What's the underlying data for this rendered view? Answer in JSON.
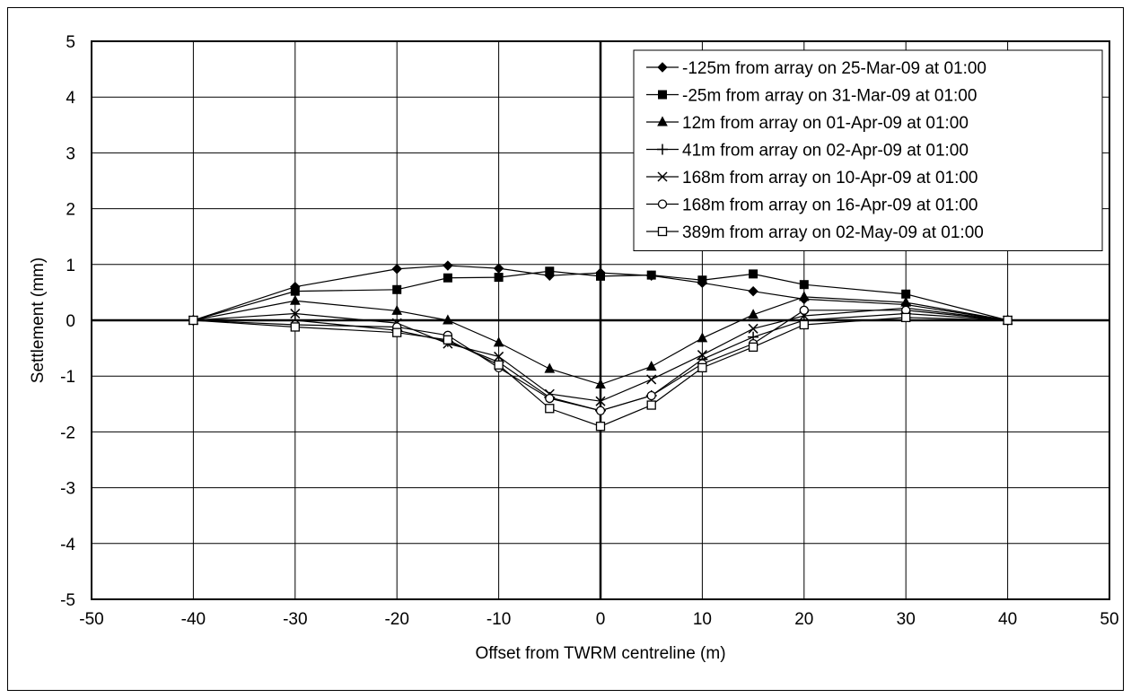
{
  "chart_data": {
    "type": "line",
    "title": "",
    "xlabel": "Offset from TWRM centreline (m)",
    "ylabel": "Settlement (mm)",
    "xlim": [
      -50,
      50
    ],
    "ylim": [
      -5,
      5
    ],
    "x_ticks": [
      "-50",
      "-40",
      "-30",
      "-20",
      "-10",
      "0",
      "10",
      "20",
      "30",
      "40",
      "50"
    ],
    "y_ticks": [
      "5",
      "4",
      "3",
      "2",
      "1",
      "0",
      "-1",
      "-2",
      "-3",
      "-4",
      "-5"
    ],
    "grid": true,
    "legend_position": "top-right",
    "x": [
      -40,
      -30,
      -20,
      -15,
      -10,
      -5,
      0,
      5,
      10,
      15,
      20,
      30,
      40
    ],
    "series": [
      {
        "name": "-125m from array on 25-Mar-09 at 01:00",
        "marker": "diamond-filled",
        "values": [
          0,
          0.6,
          0.92,
          0.98,
          0.93,
          0.8,
          0.85,
          0.8,
          0.67,
          0.52,
          0.38,
          0.28,
          0
        ]
      },
      {
        "name": "-25m from array on 31-Mar-09 at 01:00",
        "marker": "square-filled",
        "values": [
          0,
          0.52,
          0.55,
          0.76,
          0.77,
          0.88,
          0.79,
          0.81,
          0.72,
          0.83,
          0.64,
          0.47,
          0
        ]
      },
      {
        "name": "12m from array on 01-Apr-09 at 01:00",
        "marker": "triangle-filled",
        "values": [
          0,
          0.35,
          0.17,
          0.0,
          -0.4,
          -0.87,
          -1.15,
          -0.83,
          -0.32,
          0.1,
          0.42,
          0.32,
          0
        ]
      },
      {
        "name": "41m from array on 02-Apr-09 at 01:00",
        "marker": "plus",
        "values": [
          0,
          0.0,
          -0.18,
          -0.38,
          -0.75,
          -1.38,
          -1.62,
          -1.35,
          -0.7,
          -0.3,
          0.0,
          0.12,
          0
        ]
      },
      {
        "name": "168m from array on 10-Apr-09 at 01:00",
        "marker": "x",
        "values": [
          0,
          0.12,
          -0.05,
          -0.42,
          -0.65,
          -1.32,
          -1.45,
          -1.06,
          -0.62,
          -0.15,
          0.08,
          0.22,
          0
        ]
      },
      {
        "name": "168m from array on 16-Apr-09 at 01:00",
        "marker": "circle-open",
        "values": [
          0,
          -0.08,
          -0.12,
          -0.27,
          -0.85,
          -1.4,
          -1.62,
          -1.35,
          -0.78,
          -0.42,
          0.18,
          0.18,
          0
        ]
      },
      {
        "name": "389m from array on 02-May-09 at 01:00",
        "marker": "square-open",
        "values": [
          0,
          -0.12,
          -0.22,
          -0.35,
          -0.8,
          -1.58,
          -1.9,
          -1.52,
          -0.85,
          -0.48,
          -0.08,
          0.05,
          0
        ]
      }
    ]
  }
}
